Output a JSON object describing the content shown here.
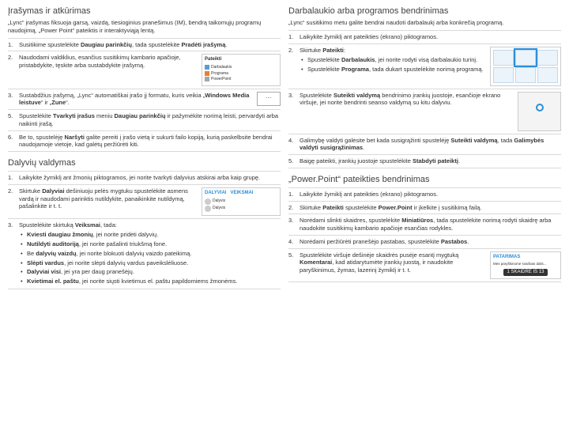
{
  "left": {
    "recording": {
      "title": "Įrašymas ir atkūrimas",
      "intro": "„Lync“ įrašymas fiksuoja garsą, vaizdą, tiesioginius pranešimus (IM), bendrą taikomųjų programų naudojimą, „Power Point“ pateiktis ir interaktyviąją lentą.",
      "steps": [
        "Susitikime spustelėkite <b>Daugiau parinkčių</b>, tada spustelėkite <b>Pradėti įrašymą</b>.",
        "Naudodami valdiklius, esančius susitikimų kambario apačioje, pristabdykite, tęskite arba sustabdykite įrašymą.",
        "Sustabdžius įrašymą, „Lync“ automatiškai įrašo jį formatu, kuris veikia „<b>Windows Media leistuve</b>“ ir „<b>Zune</b>“.",
        "",
        "Spustelėkite <b>Tvarkyti įrašus</b> meniu <b>Daugiau parinkčių</b> ir pažymėkite norimą leisti, pervardyti arba naikinti įrašą.",
        "Be to, spustelėję <b>Naršyti</b> galite pereiti į įrašo vietą ir sukurti failo kopiją, kurią paskelbsite bendrai naudojamoje vietoje, kad galėtų peržiūrėti kiti."
      ]
    },
    "participants": {
      "title": "Dalyvių valdymas",
      "steps": [
        "Laikykite žymiklį ant žmonių piktogramos, jei norite tvarkyti dalyvius atskirai arba kaip grupę.",
        "Skirtuke <b>Dalyviai</b> dešiniuoju pelės mygtuku spustelėkite asmens vardą ir naudodami parinktis nutildykite, panaikinkite nutildymą, pašalinkite ir t. t.",
        "Spustelėkite skirtuką <b>Veiksmai</b>, tada:"
      ],
      "bullets": [
        "<b>Kviesti daugiau žmonių</b>, jei norite pridėti dalyvių.",
        "<b>Nutildyti auditoriją</b>, jei norite pašalinti triukšmą fone.",
        "Be <b>dalyvių vaizdų</b>, jei norite blokuoti dalyvių vaizdo pateikimą.",
        "<b>Slėpti vardus</b>, jei norite slėpti dalyvių vardus paveikslėliuose.",
        "<b>Dalyviai visi</b>, jei yra per daug pranešėjų.",
        "<b>Kvietimai el. paštu</b>, jei norite siųsti kvietimus el. paštu papildomiems žmonėms."
      ]
    }
  },
  "right": {
    "desktop": {
      "title": "Darbalaukio arba programos bendrinimas",
      "intro": "„Lync“ susitikimo metu galite bendrai naudoti darbalaukį arba konkrečią programą.",
      "steps": [
        "Laikykite žymiklį ant pateikties (ekrano) piktogramos.",
        "Skirtuke <b>Pateikti</b>:",
        "Spustelėkite <b>Suteikti valdymą</b> bendrinimo įrankių juostoje, esančioje ekrano viršuje, jei norite bendrinti seanso valdymą su kitu dalyviu.",
        "Galimybę valdyti galėsite bet kada susigrąžinti spustelėję <b>Suteikti valdymą</b>, tada <b>Galimybės valdyti susigrąžinimas</b>.",
        "Baigę pateikti, įrankių juostoje spustelėkite <b>Stabdyti pateiktį</b>."
      ],
      "bullets": [
        "Spustelėkite <b>Darbalaukis</b>, jei norite rodyti visą darbalaukio turinį.",
        "Spustelėkite <b>Programa</b>, tada dukart spustelėkite norimą programą."
      ]
    },
    "ppt": {
      "title": "„Power.Point“ pateikties bendrinimas",
      "steps": [
        "Laikykite žymiklį ant pateikties (ekrano) piktogramos.",
        "Skirtuke <b>Pateikti</b> spustelėkite <b>Power.Point</b> ir įkelkite į susitikimą failą.",
        "Norėdami slinkti skaidres, spustelėkite <b>Miniatiūros</b>, tada spustelėkite norimą rodyti skaidrę arba naudokite susitikimų kambario apačioje esančias rodykles.",
        "Norėdami peržiūrėti pranešėjo pastabas, spustelėkite <b>Pastabos</b>.",
        "Spustelėkite viršuje dešinėje skaidrės pusėje esantį mygtuką <b>Komentarai</b>, kad atidarytumėte įrankių juostą, ir naudokite paryškinimus, žymas, lazerinį žymiklį ir t. t."
      ]
    },
    "slide_badge": "1 SKAIDRĖ IŠ 13"
  }
}
